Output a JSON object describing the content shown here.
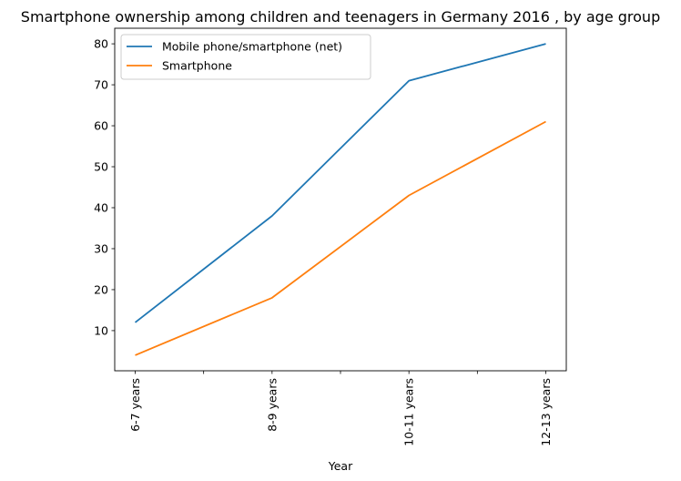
{
  "chart_data": {
    "type": "line",
    "title": "Smartphone ownership among children and teenagers in Germany 2016 , by age group",
    "xlabel": "Year",
    "ylabel": "",
    "categories": [
      "6-7 years",
      "8-9 years",
      "10-11 years",
      "12-13 years"
    ],
    "series": [
      {
        "name": "Mobile phone/smartphone (net)",
        "values": [
          12,
          38,
          71,
          80
        ],
        "color": "#1f77b4"
      },
      {
        "name": "Smartphone",
        "values": [
          4,
          18,
          43,
          61
        ],
        "color": "#ff7f0e"
      }
    ],
    "ylim": [
      0.2,
      83.8
    ],
    "yticks": [
      10,
      20,
      30,
      40,
      50,
      60,
      70,
      80
    ],
    "grid": false,
    "legend_position": "top-left"
  }
}
